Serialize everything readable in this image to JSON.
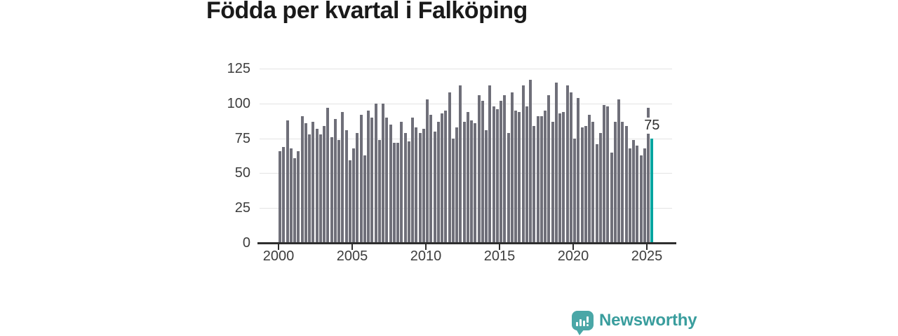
{
  "title": "Födda per kvartal i Falköping",
  "chart_data": {
    "type": "bar",
    "title": "Födda per kvartal i Falköping",
    "xlabel": "",
    "ylabel": "",
    "x_unit": "quarter",
    "x_start": "2000-Q1",
    "x_end": "2025-Q2",
    "x_tick_years": [
      2000,
      2005,
      2010,
      2015,
      2020,
      2025
    ],
    "y_ticks": [
      0,
      25,
      50,
      75,
      100,
      125
    ],
    "ylim": [
      0,
      125
    ],
    "grid": "horizontal",
    "legend": "none",
    "highlight_index": 101,
    "highlight_label": "75",
    "values": [
      66,
      69,
      88,
      68,
      61,
      66,
      91,
      86,
      78,
      87,
      82,
      78,
      84,
      97,
      76,
      89,
      74,
      94,
      81,
      59,
      68,
      79,
      92,
      63,
      95,
      90,
      100,
      74,
      100,
      90,
      85,
      72,
      72,
      87,
      79,
      73,
      90,
      83,
      79,
      82,
      103,
      92,
      80,
      87,
      93,
      95,
      108,
      75,
      83,
      113,
      87,
      94,
      88,
      86,
      106,
      102,
      81,
      113,
      98,
      96,
      102,
      106,
      79,
      108,
      95,
      94,
      113,
      98,
      117,
      84,
      91,
      91,
      95,
      106,
      87,
      115,
      93,
      94,
      113,
      108,
      75,
      104,
      83,
      84,
      92,
      87,
      71,
      79,
      99,
      98,
      65,
      87,
      103,
      87,
      84,
      68,
      74,
      70,
      63,
      68,
      97,
      75
    ]
  },
  "colors": {
    "bar": "#6f6f79",
    "accent": "#00a5a0",
    "grid": "#e3e3e3",
    "axis": "#2e2e2e",
    "text": "#3d3d3d",
    "brand": "#399d9d"
  },
  "branding": {
    "name": "Newsworthy"
  }
}
